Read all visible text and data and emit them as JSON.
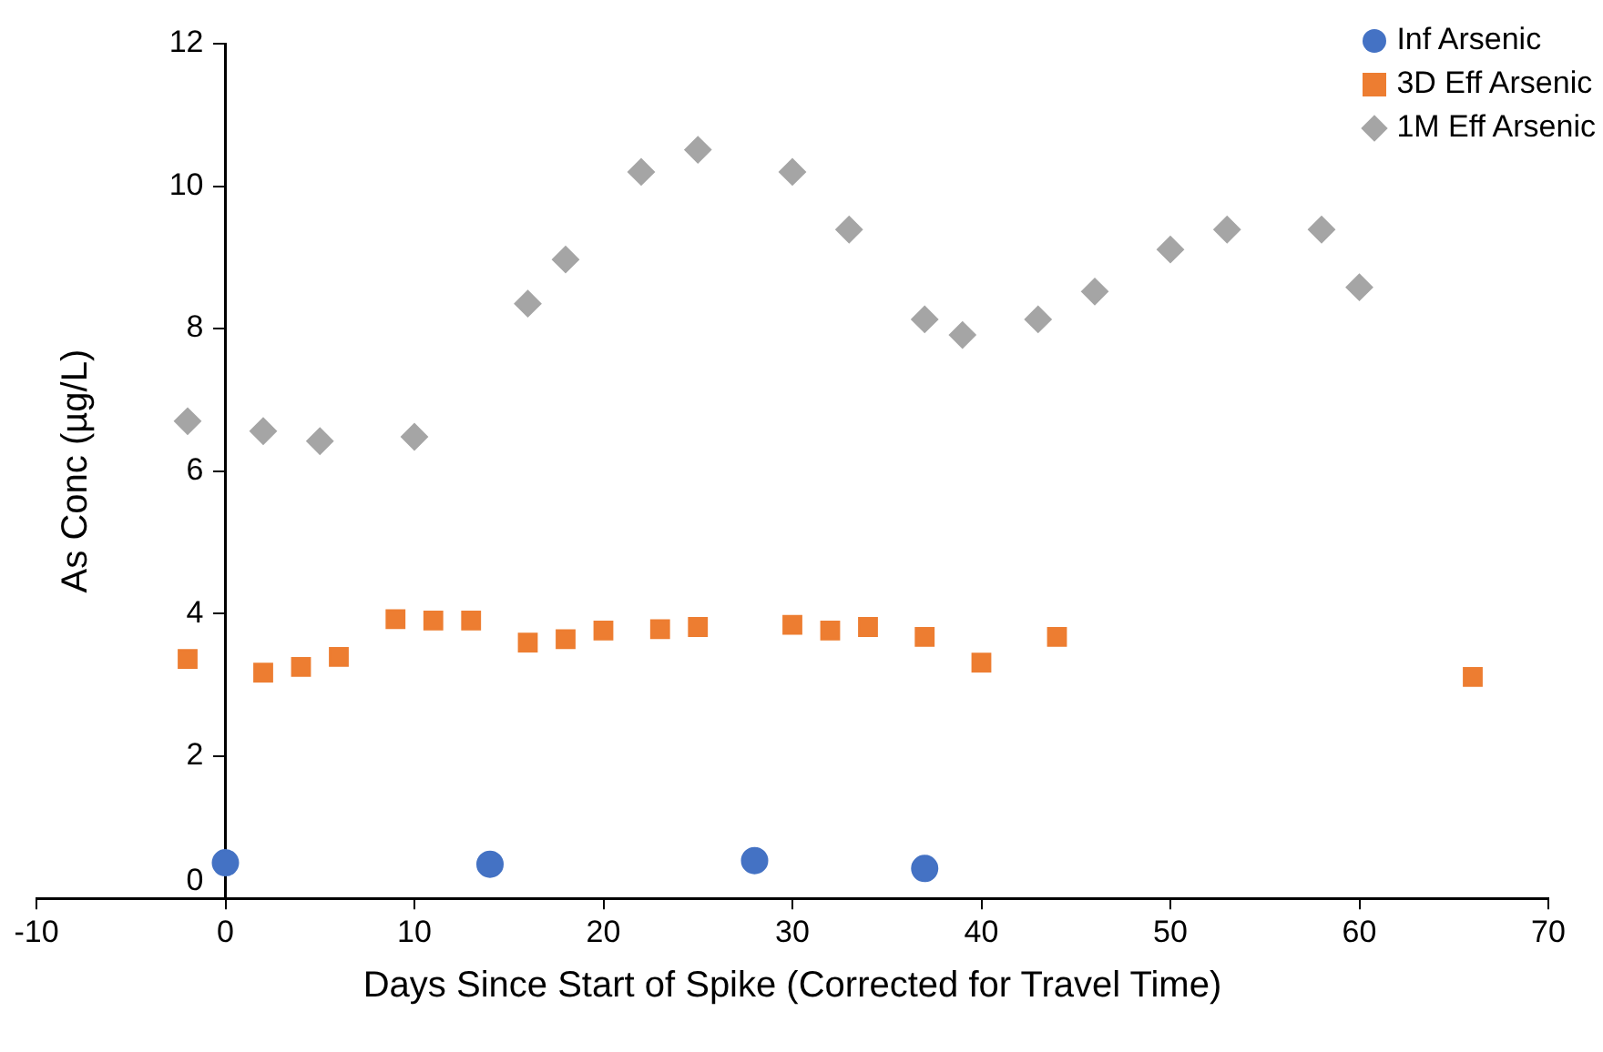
{
  "chart_data": {
    "type": "scatter",
    "xlabel": "Days Since Start of Spike (Corrected for Travel Time)",
    "ylabel": "As Conc (µg/L)",
    "xlim": [
      -10,
      70
    ],
    "xticks": [
      -10,
      0,
      10,
      20,
      30,
      40,
      50,
      60,
      70
    ],
    "ylim": [
      0,
      12
    ],
    "yticks": [
      0,
      2,
      4,
      6,
      8,
      10,
      12
    ],
    "grid": false,
    "legend": "top right",
    "series": [
      {
        "name": "Inf Arsenic",
        "color": "#4472c4",
        "marker": "circle",
        "x": [
          0,
          14,
          28,
          37
        ],
        "values": [
          0.5,
          0.48,
          0.53,
          0.42
        ]
      },
      {
        "name": "3D Eff Arsenic",
        "color": "#ed7d31",
        "marker": "square",
        "x": [
          -2,
          2,
          4,
          6,
          9,
          11,
          13,
          16,
          18,
          20,
          23,
          25,
          30,
          32,
          34,
          37,
          40,
          44,
          66
        ],
        "values": [
          3.36,
          3.17,
          3.25,
          3.39,
          3.92,
          3.9,
          3.9,
          3.59,
          3.64,
          3.76,
          3.78,
          3.81,
          3.84,
          3.76,
          3.81,
          3.67,
          3.31,
          3.67,
          3.11
        ]
      },
      {
        "name": "1M Eff Arsenic",
        "color": "#a5a5a5",
        "marker": "diamond",
        "x": [
          -2,
          2,
          5,
          10,
          16,
          18,
          22,
          25,
          30,
          33,
          37,
          39,
          43,
          46,
          50,
          53,
          58,
          60
        ],
        "values": [
          6.7,
          6.56,
          6.42,
          6.48,
          8.35,
          8.97,
          10.2,
          10.51,
          10.2,
          9.39,
          8.13,
          7.91,
          8.13,
          8.52,
          9.11,
          9.39,
          9.39,
          8.58
        ]
      }
    ]
  }
}
